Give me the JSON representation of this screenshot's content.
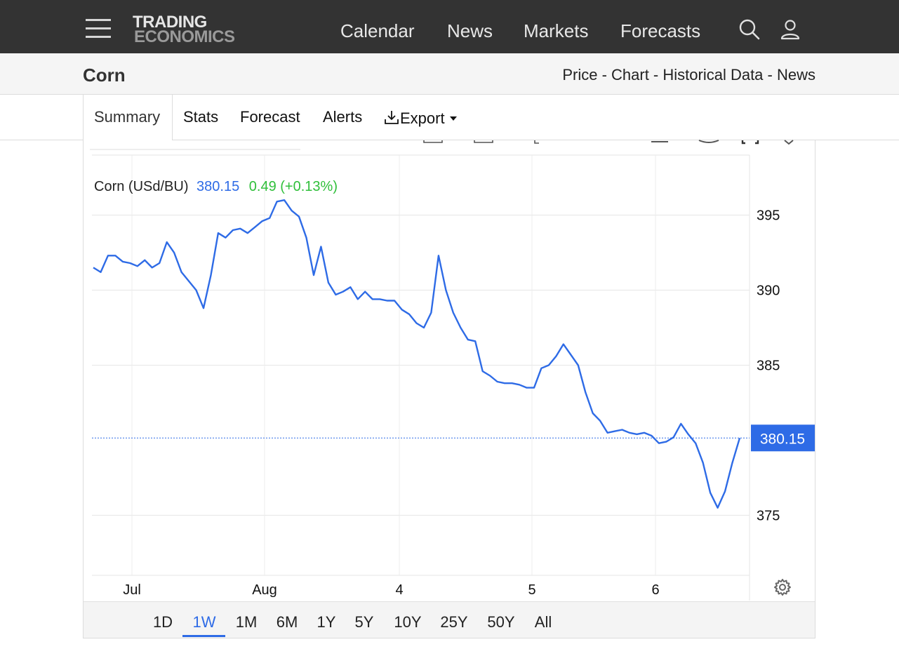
{
  "header": {
    "logo_line1": "TRADING",
    "logo_line2": "ECONOMICS",
    "nav": [
      {
        "label": "Calendar"
      },
      {
        "label": "News"
      },
      {
        "label": "Markets"
      },
      {
        "label": "Forecasts"
      }
    ],
    "icons": [
      "menu-icon",
      "search-icon",
      "user-icon"
    ]
  },
  "subheader": {
    "title": "Corn",
    "breadcrumb": [
      "Price",
      "Chart",
      "Historical Data",
      "News"
    ],
    "separator": " - "
  },
  "tabs": {
    "items": [
      {
        "label": "Summary"
      },
      {
        "label": "Stats"
      },
      {
        "label": "Forecast"
      },
      {
        "label": "Alerts"
      },
      {
        "label": "Export"
      }
    ],
    "active": "Summary",
    "icons": [
      "download-icon",
      "caret-down-icon"
    ]
  },
  "chart_data": {
    "type": "line",
    "series": [
      {
        "name": "Corn (USd/BU)",
        "color": "#2e6be6",
        "values": [
          391.5,
          391.2,
          392.3,
          392.3,
          391.9,
          391.8,
          391.6,
          392.0,
          391.5,
          391.8,
          393.2,
          392.5,
          391.2,
          390.6,
          390.0,
          388.8,
          391.0,
          393.8,
          393.5,
          394.0,
          394.1,
          393.8,
          394.2,
          394.6,
          394.8,
          395.9,
          396.0,
          395.3,
          394.9,
          393.5,
          391.0,
          392.9,
          390.5,
          389.7,
          389.9,
          390.2,
          389.4,
          389.9,
          389.4,
          389.4,
          389.3,
          389.3,
          388.7,
          388.4,
          387.8,
          387.5,
          388.5,
          392.3,
          390.0,
          388.5,
          387.5,
          386.7,
          386.6,
          384.6,
          384.3,
          383.9,
          383.8,
          383.8,
          383.7,
          383.5,
          383.5,
          384.8,
          385.0,
          385.6,
          386.4,
          385.7,
          385.0,
          383.2,
          381.8,
          381.3,
          380.5,
          380.6,
          380.7,
          380.5,
          380.4,
          380.5,
          380.3,
          379.8,
          379.9,
          380.2,
          381.1,
          380.4,
          379.8,
          378.5,
          376.5,
          375.5,
          376.6,
          378.5,
          380.15
        ]
      }
    ],
    "legend": {
      "series_label": "Corn (USd/BU)",
      "last_value": "380.15",
      "change": "0.49 (+0.13%)",
      "change_color": "#2fbf3a"
    },
    "x_ticks": [
      "Jul",
      "Aug",
      "4",
      "5",
      "6"
    ],
    "y_ticks": [
      "395",
      "390",
      "385",
      "375"
    ],
    "ylim": [
      371,
      399
    ],
    "last_price_label": "380.15",
    "last_price_color": "#2e6be6",
    "grid": true,
    "y_axis_side": "right"
  },
  "ranges": {
    "items": [
      "1D",
      "1W",
      "1M",
      "6M",
      "1Y",
      "5Y",
      "10Y",
      "25Y",
      "50Y",
      "All"
    ],
    "active": "1W"
  }
}
